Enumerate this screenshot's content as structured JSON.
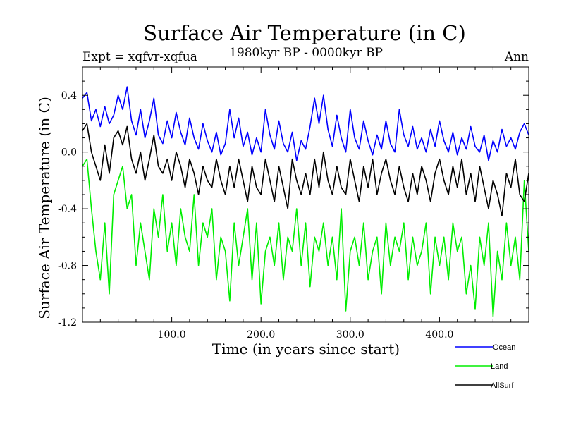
{
  "header": {
    "title": "Surface Air Temperature (in C)",
    "expt": "Expt = xqfvr-xqfua",
    "period": "1980kyr BP - 0000kyr BP",
    "season": "Ann"
  },
  "colors": {
    "Ocean": "#0000ff",
    "Land": "#00ee00",
    "AllSurf": "#000000",
    "axis": "#000000"
  },
  "chart_data": {
    "type": "line",
    "title": "Surface Air Temperature (in C)",
    "xlabel": "Time (in years since start)",
    "ylabel": "Surface Air Temperature (in C)",
    "xlim": [
      0,
      500
    ],
    "ylim": [
      -1.2,
      0.6
    ],
    "xticks": [
      100,
      200,
      300,
      400
    ],
    "xtick_labels": [
      "100.0",
      "200.0",
      "300.0",
      "400.0"
    ],
    "yticks": [
      -1.2,
      -0.8,
      -0.4,
      0.0,
      0.4
    ],
    "ytick_labels": [
      "-1.2",
      "-0.8",
      "-0.4",
      "0.0",
      "0.4"
    ],
    "zero_line": 0.0,
    "legend_position": "bottom-right",
    "series": [
      {
        "name": "Ocean",
        "x": [
          0,
          5,
          10,
          15,
          20,
          25,
          30,
          35,
          40,
          45,
          50,
          55,
          60,
          65,
          70,
          75,
          80,
          85,
          90,
          95,
          100,
          105,
          110,
          115,
          120,
          125,
          130,
          135,
          140,
          145,
          150,
          155,
          160,
          165,
          170,
          175,
          180,
          185,
          190,
          195,
          200,
          205,
          210,
          215,
          220,
          225,
          230,
          235,
          240,
          245,
          250,
          255,
          260,
          265,
          270,
          275,
          280,
          285,
          290,
          295,
          300,
          305,
          310,
          315,
          320,
          325,
          330,
          335,
          340,
          345,
          350,
          355,
          360,
          365,
          370,
          375,
          380,
          385,
          390,
          395,
          400,
          405,
          410,
          415,
          420,
          425,
          430,
          435,
          440,
          445,
          450,
          455,
          460,
          465,
          470,
          475,
          480,
          485,
          490,
          495,
          500
        ],
        "values": [
          0.38,
          0.42,
          0.22,
          0.3,
          0.18,
          0.32,
          0.2,
          0.26,
          0.4,
          0.3,
          0.46,
          0.22,
          0.12,
          0.3,
          0.1,
          0.22,
          0.38,
          0.12,
          0.06,
          0.22,
          0.1,
          0.28,
          0.14,
          0.05,
          0.24,
          0.1,
          0.02,
          0.2,
          0.08,
          0.0,
          0.14,
          -0.02,
          0.06,
          0.3,
          0.1,
          0.24,
          0.04,
          0.14,
          -0.02,
          0.1,
          0.0,
          0.3,
          0.12,
          0.02,
          0.22,
          0.06,
          0.0,
          0.14,
          -0.06,
          0.08,
          0.02,
          0.18,
          0.38,
          0.2,
          0.4,
          0.16,
          0.04,
          0.26,
          0.1,
          0.0,
          0.3,
          0.1,
          0.02,
          0.22,
          0.08,
          -0.02,
          0.12,
          0.02,
          0.22,
          0.06,
          0.0,
          0.3,
          0.12,
          0.04,
          0.18,
          0.02,
          0.1,
          0.0,
          0.16,
          0.04,
          0.22,
          0.08,
          0.0,
          0.14,
          -0.02,
          0.1,
          0.02,
          0.18,
          0.04,
          0.0,
          0.12,
          -0.06,
          0.08,
          0.0,
          0.16,
          0.04,
          0.1,
          0.02,
          0.14,
          0.2,
          0.12
        ]
      },
      {
        "name": "Land",
        "x": [
          0,
          5,
          10,
          15,
          20,
          25,
          30,
          35,
          40,
          45,
          50,
          55,
          60,
          65,
          70,
          75,
          80,
          85,
          90,
          95,
          100,
          105,
          110,
          115,
          120,
          125,
          130,
          135,
          140,
          145,
          150,
          155,
          160,
          165,
          170,
          175,
          180,
          185,
          190,
          195,
          200,
          205,
          210,
          215,
          220,
          225,
          230,
          235,
          240,
          245,
          250,
          255,
          260,
          265,
          270,
          275,
          280,
          285,
          290,
          295,
          300,
          305,
          310,
          315,
          320,
          325,
          330,
          335,
          340,
          345,
          350,
          355,
          360,
          365,
          370,
          375,
          380,
          385,
          390,
          395,
          400,
          405,
          410,
          415,
          420,
          425,
          430,
          435,
          440,
          445,
          450,
          455,
          460,
          465,
          470,
          475,
          480,
          485,
          490,
          495,
          500
        ],
        "values": [
          -0.1,
          -0.05,
          -0.4,
          -0.7,
          -0.9,
          -0.5,
          -1.0,
          -0.3,
          -0.2,
          -0.1,
          -0.4,
          -0.3,
          -0.8,
          -0.5,
          -0.7,
          -0.9,
          -0.4,
          -0.6,
          -0.3,
          -0.7,
          -0.5,
          -0.8,
          -0.4,
          -0.6,
          -0.7,
          -0.3,
          -0.8,
          -0.5,
          -0.6,
          -0.4,
          -0.9,
          -0.6,
          -0.7,
          -1.05,
          -0.5,
          -0.8,
          -0.6,
          -0.4,
          -0.9,
          -0.5,
          -1.07,
          -0.7,
          -0.6,
          -0.8,
          -0.5,
          -0.9,
          -0.6,
          -0.7,
          -0.4,
          -0.8,
          -0.5,
          -0.95,
          -0.6,
          -0.7,
          -0.5,
          -0.8,
          -0.6,
          -0.9,
          -0.4,
          -1.12,
          -0.7,
          -0.6,
          -0.8,
          -0.5,
          -0.9,
          -0.7,
          -0.6,
          -1.0,
          -0.5,
          -0.8,
          -0.6,
          -0.7,
          -0.5,
          -0.9,
          -0.6,
          -0.8,
          -0.7,
          -0.5,
          -1.0,
          -0.6,
          -0.8,
          -0.6,
          -0.9,
          -0.5,
          -0.7,
          -0.6,
          -1.0,
          -0.8,
          -1.11,
          -0.6,
          -0.8,
          -0.5,
          -1.16,
          -0.7,
          -0.9,
          -0.5,
          -0.8,
          -0.6,
          -0.9,
          -0.2,
          -0.7
        ]
      },
      {
        "name": "AllSurf",
        "x": [
          0,
          5,
          10,
          15,
          20,
          25,
          30,
          35,
          40,
          45,
          50,
          55,
          60,
          65,
          70,
          75,
          80,
          85,
          90,
          95,
          100,
          105,
          110,
          115,
          120,
          125,
          130,
          135,
          140,
          145,
          150,
          155,
          160,
          165,
          170,
          175,
          180,
          185,
          190,
          195,
          200,
          205,
          210,
          215,
          220,
          225,
          230,
          235,
          240,
          245,
          250,
          255,
          260,
          265,
          270,
          275,
          280,
          285,
          290,
          295,
          300,
          305,
          310,
          315,
          320,
          325,
          330,
          335,
          340,
          345,
          350,
          355,
          360,
          365,
          370,
          375,
          380,
          385,
          390,
          395,
          400,
          405,
          410,
          415,
          420,
          425,
          430,
          435,
          440,
          445,
          450,
          455,
          460,
          465,
          470,
          475,
          480,
          485,
          490,
          495,
          500
        ],
        "values": [
          0.15,
          0.2,
          0.0,
          -0.1,
          -0.2,
          0.05,
          -0.15,
          0.1,
          0.15,
          0.05,
          0.18,
          -0.05,
          -0.15,
          0.0,
          -0.2,
          -0.05,
          0.12,
          -0.1,
          -0.15,
          -0.05,
          -0.2,
          0.0,
          -0.1,
          -0.25,
          -0.05,
          -0.15,
          -0.3,
          -0.1,
          -0.2,
          -0.25,
          -0.05,
          -0.2,
          -0.3,
          -0.1,
          -0.25,
          -0.05,
          -0.2,
          -0.35,
          -0.1,
          -0.25,
          -0.3,
          -0.05,
          -0.2,
          -0.35,
          -0.1,
          -0.25,
          -0.4,
          -0.05,
          -0.2,
          -0.3,
          -0.15,
          -0.3,
          -0.05,
          -0.25,
          0.0,
          -0.2,
          -0.3,
          -0.1,
          -0.25,
          -0.3,
          -0.05,
          -0.2,
          -0.35,
          -0.1,
          -0.25,
          -0.05,
          -0.3,
          -0.15,
          -0.05,
          -0.2,
          -0.3,
          -0.1,
          -0.25,
          -0.35,
          -0.15,
          -0.3,
          -0.1,
          -0.2,
          -0.35,
          -0.15,
          -0.05,
          -0.2,
          -0.3,
          -0.1,
          -0.25,
          -0.05,
          -0.3,
          -0.15,
          -0.35,
          -0.1,
          -0.25,
          -0.4,
          -0.2,
          -0.3,
          -0.45,
          -0.15,
          -0.25,
          -0.05,
          -0.3,
          -0.35,
          -0.15
        ]
      }
    ]
  }
}
